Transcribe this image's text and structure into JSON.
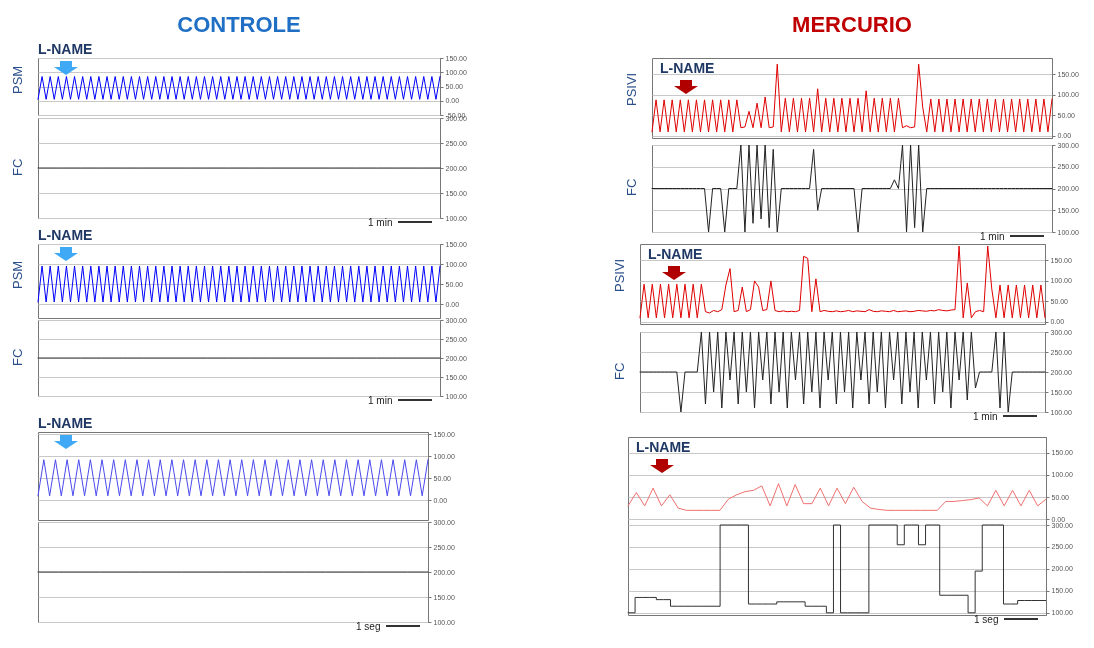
{
  "chart_data": [
    {
      "type": "line",
      "title": "CONTROLE",
      "ylabel": "PSM",
      "annotations": [
        "L-NAME"
      ],
      "categories": [
        null,
        null,
        null,
        null,
        null,
        null,
        null,
        null,
        null,
        null,
        null,
        null,
        null,
        null,
        null,
        null,
        null,
        null,
        null,
        null,
        null,
        null,
        null,
        null,
        null,
        null,
        null,
        null,
        null,
        null,
        null,
        null,
        null,
        null,
        null,
        null,
        null,
        null,
        null,
        null,
        null,
        null,
        null,
        null,
        null,
        null,
        null,
        null,
        null,
        null,
        null,
        null,
        null,
        null,
        null,
        null,
        null,
        null,
        null,
        null,
        null,
        null,
        null,
        null,
        null,
        null,
        null,
        null,
        null,
        null,
        null,
        null,
        null,
        null,
        null,
        null,
        null,
        null,
        null,
        null,
        null,
        null,
        null,
        null,
        null,
        null,
        null,
        null,
        null,
        null,
        null,
        null,
        null,
        null,
        null,
        null,
        null,
        null,
        null,
        null
      ],
      "series": [
        {
          "color": "#0000ff",
          "values": [
            5,
            85,
            5,
            85,
            5,
            85,
            5,
            85,
            5,
            85,
            5,
            85,
            5,
            85,
            5,
            85,
            5,
            85,
            5,
            85,
            5,
            85,
            5,
            85,
            5,
            85,
            5,
            85,
            5,
            85,
            5,
            85,
            5,
            85,
            5,
            85,
            5,
            85,
            5,
            85,
            5,
            85,
            5,
            85,
            5,
            85,
            5,
            85,
            5,
            85,
            5,
            85,
            5,
            85,
            5,
            85,
            5,
            85,
            5,
            85,
            5,
            85,
            5,
            85,
            5,
            85,
            5,
            85,
            5,
            85,
            5,
            85,
            5,
            85,
            5,
            85,
            5,
            85,
            5,
            85,
            5,
            85,
            5,
            85,
            5,
            85,
            5,
            85,
            5,
            85,
            5,
            85,
            5,
            85,
            5,
            85,
            5,
            85,
            5,
            85
          ]
        }
      ],
      "ylim": [
        -50,
        150
      ],
      "yticks": [
        {
          "value": 150,
          "label": "150.00"
        },
        {
          "value": 100,
          "label": "100.00"
        },
        {
          "value": 50,
          "label": "50.00"
        },
        {
          "value": 0,
          "label": "0.00"
        },
        {
          "value": -50,
          "label": "-50.00"
        }
      ],
      "grid": "y",
      "tick_labels": "y"
    },
    {
      "type": "line",
      "ylabel": "FC",
      "categories": [
        null,
        null,
        null,
        null,
        null,
        null,
        null,
        null,
        null,
        null,
        null,
        null,
        null,
        null,
        null,
        null,
        null,
        null,
        null,
        null
      ],
      "series": [
        {
          "color": "#333333",
          "values": [
            200,
            200,
            200,
            200,
            200,
            200,
            200,
            200,
            200,
            200,
            200,
            200,
            200,
            200,
            200,
            200,
            200,
            200,
            200,
            200
          ]
        }
      ],
      "ylim": [
        100,
        300
      ],
      "yticks": [
        {
          "value": 300,
          "label": "300.00"
        },
        {
          "value": 250,
          "label": "250.00"
        },
        {
          "value": 200,
          "label": "200.00"
        },
        {
          "value": 150,
          "label": "150.00"
        },
        {
          "value": 100,
          "label": "100.00"
        }
      ],
      "grid": "y",
      "tick_labels": "y",
      "annotations": [
        "1 min"
      ]
    },
    {
      "type": "line",
      "ylabel": "PSM",
      "annotations": [
        "L-NAME"
      ],
      "categories": [
        null,
        null,
        null,
        null,
        null,
        null,
        null,
        null,
        null,
        null,
        null,
        null,
        null,
        null,
        null,
        null,
        null,
        null,
        null,
        null,
        null,
        null,
        null,
        null,
        null,
        null,
        null,
        null,
        null,
        null,
        null,
        null,
        null,
        null,
        null,
        null,
        null,
        null,
        null,
        null,
        null,
        null,
        null,
        null,
        null,
        null,
        null,
        null,
        null,
        null,
        null,
        null,
        null,
        null,
        null,
        null,
        null,
        null,
        null,
        null,
        null,
        null,
        null,
        null,
        null,
        null,
        null,
        null,
        null,
        null,
        null,
        null,
        null,
        null,
        null,
        null,
        null,
        null,
        null,
        null,
        null,
        null,
        null,
        null,
        null,
        null,
        null,
        null,
        null,
        null,
        null,
        null,
        null,
        null,
        null,
        null,
        null,
        null,
        null,
        null
      ],
      "series": [
        {
          "color": "#0000ff",
          "values": [
            5,
            95,
            5,
            95,
            5,
            95,
            5,
            95,
            5,
            95,
            5,
            95,
            5,
            95,
            5,
            95,
            5,
            95,
            5,
            95,
            5,
            95,
            5,
            95,
            5,
            95,
            5,
            95,
            5,
            95,
            5,
            95,
            5,
            95,
            5,
            95,
            5,
            95,
            5,
            95,
            5,
            95,
            5,
            95,
            5,
            95,
            5,
            95,
            5,
            95,
            5,
            95,
            5,
            95,
            5,
            95,
            5,
            95,
            5,
            95,
            5,
            95,
            5,
            95,
            5,
            95,
            5,
            95,
            5,
            95,
            5,
            95,
            5,
            95,
            5,
            95,
            5,
            95,
            5,
            95,
            5,
            95,
            5,
            95,
            5,
            95,
            5,
            95,
            5,
            95,
            5,
            95,
            5,
            95,
            5,
            95,
            5,
            95,
            5,
            95
          ]
        }
      ],
      "ylim": [
        -35,
        150
      ],
      "yticks": [
        {
          "value": 150,
          "label": "150.00"
        },
        {
          "value": 100,
          "label": "100.00"
        },
        {
          "value": 50,
          "label": "50.00"
        },
        {
          "value": 0,
          "label": "0.00"
        }
      ],
      "grid": "y",
      "tick_labels": "y"
    },
    {
      "type": "line",
      "ylabel": "FC",
      "categories": [
        null,
        null,
        null,
        null,
        null,
        null,
        null,
        null,
        null,
        null,
        null,
        null,
        null,
        null,
        null,
        null,
        null,
        null,
        null,
        null
      ],
      "series": [
        {
          "color": "#333333",
          "values": [
            200,
            200,
            200,
            200,
            200,
            200,
            200,
            200,
            200,
            200,
            200,
            200,
            200,
            200,
            200,
            200,
            200,
            200,
            200,
            200
          ]
        }
      ],
      "ylim": [
        100,
        300
      ],
      "yticks": [
        {
          "value": 300,
          "label": "300.00"
        },
        {
          "value": 250,
          "label": "250.00"
        },
        {
          "value": 200,
          "label": "200.00"
        },
        {
          "value": 150,
          "label": "150.00"
        },
        {
          "value": 100,
          "label": "100.00"
        }
      ],
      "grid": "y",
      "tick_labels": "y",
      "annotations": [
        "1 min"
      ]
    },
    {
      "type": "line",
      "annotations": [
        "L-NAME"
      ],
      "categories": [
        null,
        null,
        null,
        null,
        null,
        null,
        null,
        null,
        null,
        null,
        null,
        null,
        null,
        null,
        null,
        null,
        null,
        null,
        null,
        null,
        null,
        null,
        null,
        null,
        null,
        null,
        null,
        null,
        null,
        null,
        null,
        null,
        null,
        null,
        null,
        null,
        null,
        null,
        null,
        null,
        null,
        null,
        null,
        null,
        null,
        null,
        null,
        null,
        null,
        null,
        null,
        null,
        null,
        null,
        null,
        null,
        null,
        null,
        null,
        null,
        null,
        null,
        null,
        null,
        null,
        null,
        null,
        null
      ],
      "series": [
        {
          "color": "#4a4aee",
          "values": [
            10,
            92,
            10,
            92,
            10,
            92,
            10,
            92,
            10,
            92,
            10,
            92,
            10,
            92,
            10,
            92,
            10,
            92,
            10,
            92,
            10,
            92,
            10,
            92,
            10,
            92,
            10,
            92,
            10,
            92,
            10,
            92,
            10,
            92,
            10,
            92,
            10,
            92,
            10,
            92,
            10,
            92,
            10,
            92,
            10,
            92,
            10,
            92,
            10,
            92,
            10,
            92,
            10,
            92,
            10,
            92,
            10,
            92,
            10,
            92,
            10,
            92,
            10,
            92,
            10,
            92,
            10,
            92
          ]
        }
      ],
      "ylim": [
        -45,
        155
      ],
      "yticks": [
        {
          "value": 150,
          "label": "150.00"
        },
        {
          "value": 100,
          "label": "100.00"
        },
        {
          "value": 50,
          "label": "50.00"
        },
        {
          "value": 0,
          "label": "0.00"
        }
      ],
      "grid": "y",
      "tick_labels": "y"
    },
    {
      "type": "line",
      "categories": [
        null,
        null,
        null,
        null,
        null,
        null,
        null,
        null,
        null,
        null,
        null,
        null,
        null,
        null,
        null,
        null,
        null,
        null,
        null,
        null
      ],
      "series": [
        {
          "color": "#333333",
          "values": [
            200,
            200,
            200,
            200,
            200,
            200,
            200,
            200,
            200,
            200,
            200,
            200,
            200,
            200,
            200,
            200,
            200,
            200,
            200,
            200
          ]
        }
      ],
      "ylim": [
        100,
        300
      ],
      "yticks": [
        {
          "value": 300,
          "label": "300.00"
        },
        {
          "value": 250,
          "label": "250.00"
        },
        {
          "value": 200,
          "label": "200.00"
        },
        {
          "value": 150,
          "label": "150.00"
        },
        {
          "value": 100,
          "label": "100.00"
        }
      ],
      "grid": "y",
      "tick_labels": "y",
      "annotations": [
        "1 seg"
      ]
    },
    {
      "type": "line",
      "title": "MERCURIO",
      "ylabel": "PSIVI",
      "annotations": [
        "L-NAME"
      ],
      "categories": [
        null,
        null,
        null,
        null,
        null,
        null,
        null,
        null,
        null,
        null,
        null,
        null,
        null,
        null,
        null,
        null,
        null,
        null,
        null,
        null,
        null,
        null,
        null,
        null,
        null,
        null,
        null,
        null,
        null,
        null,
        null,
        null,
        null,
        null,
        null,
        null,
        null,
        null,
        null,
        null,
        null,
        null,
        null,
        null,
        null,
        null,
        null,
        null,
        null,
        null,
        null,
        null,
        null,
        null,
        null,
        null,
        null,
        null,
        null,
        null,
        null,
        null,
        null,
        null,
        null,
        null,
        null,
        null,
        null,
        null,
        null,
        null,
        null,
        null,
        null,
        null,
        null,
        null,
        null,
        null,
        null,
        null,
        null,
        null,
        null,
        null,
        null,
        null,
        null,
        null,
        null,
        null,
        null,
        null,
        null,
        null,
        null,
        null,
        null,
        null
      ],
      "series": [
        {
          "color": "#e00000",
          "values": [
            10,
            88,
            10,
            88,
            10,
            88,
            10,
            88,
            10,
            88,
            10,
            88,
            10,
            88,
            10,
            88,
            10,
            88,
            10,
            88,
            10,
            88,
            20,
            22,
            60,
            20,
            80,
            20,
            95,
            20,
            22,
            175,
            10,
            92,
            10,
            92,
            10,
            92,
            10,
            92,
            10,
            115,
            10,
            92,
            10,
            92,
            10,
            92,
            10,
            92,
            10,
            92,
            10,
            110,
            10,
            92,
            10,
            92,
            10,
            92,
            10,
            92,
            20,
            25,
            20,
            22,
            175,
            70,
            10,
            90,
            10,
            90,
            10,
            90,
            10,
            90,
            10,
            90,
            10,
            90,
            10,
            90,
            10,
            90,
            10,
            90,
            10,
            90,
            10,
            90,
            10,
            90,
            10,
            90,
            10,
            90,
            10,
            90,
            10,
            90
          ]
        }
      ],
      "ylim": [
        -5,
        190
      ],
      "yticks": [
        {
          "value": 150,
          "label": "150.00"
        },
        {
          "value": 100,
          "label": "100.00"
        },
        {
          "value": 50,
          "label": "50.00"
        },
        {
          "value": 0,
          "label": "0.00"
        }
      ],
      "grid": "y",
      "tick_labels": "y"
    },
    {
      "type": "line",
      "ylabel": "FC",
      "categories": [
        null,
        null,
        null,
        null,
        null,
        null,
        null,
        null,
        null,
        null,
        null,
        null,
        null,
        null,
        null,
        null,
        null,
        null,
        null,
        null,
        null,
        null,
        null,
        null,
        null,
        null,
        null,
        null,
        null,
        null,
        null,
        null,
        null,
        null,
        null,
        null,
        null,
        null,
        null,
        null,
        null,
        null,
        null,
        null,
        null,
        null,
        null,
        null,
        null,
        null,
        null,
        null,
        null,
        null,
        null,
        null,
        null,
        null,
        null,
        null,
        null,
        null,
        null,
        null,
        null,
        null,
        null,
        null,
        null,
        null,
        null,
        null,
        null,
        null,
        null,
        null,
        null,
        null,
        null,
        null,
        null,
        null,
        null,
        null,
        null,
        null,
        null,
        null,
        null,
        null,
        null,
        null,
        null,
        null,
        null,
        null,
        null,
        null,
        null,
        null
      ],
      "series": [
        {
          "color": "#222222",
          "values": [
            200,
            200,
            200,
            200,
            200,
            200,
            200,
            200,
            200,
            200,
            200,
            200,
            200,
            200,
            100,
            200,
            200,
            200,
            100,
            200,
            200,
            200,
            300,
            100,
            300,
            120,
            300,
            130,
            300,
            110,
            290,
            100,
            200,
            200,
            200,
            200,
            200,
            200,
            200,
            200,
            290,
            150,
            200,
            200,
            200,
            200,
            200,
            200,
            200,
            200,
            200,
            100,
            200,
            200,
            200,
            200,
            200,
            200,
            200,
            200,
            220,
            200,
            300,
            100,
            300,
            110,
            300,
            100,
            200,
            200,
            200,
            200,
            200,
            200,
            200,
            200,
            200,
            200,
            200,
            200,
            200,
            200,
            200,
            200,
            200,
            200,
            200,
            200,
            200,
            200,
            200,
            200,
            200,
            200,
            200,
            200,
            200,
            200,
            200,
            200
          ]
        }
      ],
      "ylim": [
        100,
        300
      ],
      "yticks": [
        {
          "value": 300,
          "label": "300.00"
        },
        {
          "value": 250,
          "label": "250.00"
        },
        {
          "value": 200,
          "label": "200.00"
        },
        {
          "value": 150,
          "label": "150.00"
        },
        {
          "value": 100,
          "label": "100.00"
        }
      ],
      "grid": "y",
      "tick_labels": "y",
      "annotations": [
        "1 min"
      ]
    },
    {
      "type": "line",
      "ylabel": "PSIVI",
      "annotations": [
        "L-NAME"
      ],
      "categories": [
        null,
        null,
        null,
        null,
        null,
        null,
        null,
        null,
        null,
        null,
        null,
        null,
        null,
        null,
        null,
        null,
        null,
        null,
        null,
        null,
        null,
        null,
        null,
        null,
        null,
        null,
        null,
        null,
        null,
        null,
        null,
        null,
        null,
        null,
        null,
        null,
        null,
        null,
        null,
        null,
        null,
        null,
        null,
        null,
        null,
        null,
        null,
        null,
        null,
        null,
        null,
        null,
        null,
        null,
        null,
        null,
        null,
        null,
        null,
        null,
        null,
        null,
        null,
        null,
        null,
        null,
        null,
        null,
        null,
        null,
        null,
        null,
        null,
        null,
        null,
        null,
        null,
        null,
        null,
        null,
        null,
        null,
        null,
        null,
        null,
        null,
        null,
        null,
        null,
        null,
        null,
        null,
        null,
        null,
        null,
        null,
        null,
        null,
        null,
        null
      ],
      "series": [
        {
          "color": "#e00000",
          "values": [
            10,
            92,
            10,
            92,
            10,
            92,
            10,
            92,
            10,
            92,
            10,
            92,
            10,
            92,
            10,
            92,
            25,
            22,
            28,
            25,
            30,
            90,
            130,
            25,
            28,
            85,
            25,
            30,
            100,
            85,
            28,
            30,
            100,
            28,
            25,
            27,
            25,
            26,
            25,
            28,
            160,
            155,
            25,
            105,
            25,
            28,
            26,
            25,
            27,
            25,
            26,
            28,
            25,
            27,
            26,
            25,
            30,
            26,
            25,
            27,
            26,
            25,
            28,
            25,
            26,
            27,
            25,
            26,
            28,
            27,
            26,
            28,
            27,
            30,
            28,
            27,
            29,
            30,
            185,
            10,
            95,
            10,
            25,
            28,
            25,
            185,
            80,
            10,
            90,
            10,
            90,
            10,
            90,
            10,
            90,
            10,
            90,
            10,
            90,
            10
          ]
        }
      ],
      "ylim": [
        -5,
        190
      ],
      "yticks": [
        {
          "value": 150,
          "label": "150.00"
        },
        {
          "value": 100,
          "label": "100.00"
        },
        {
          "value": 50,
          "label": "50.00"
        },
        {
          "value": 0,
          "label": "0.00"
        }
      ],
      "grid": "y",
      "tick_labels": "y"
    },
    {
      "type": "line",
      "ylabel": "FC",
      "categories": [
        null,
        null,
        null,
        null,
        null,
        null,
        null,
        null,
        null,
        null,
        null,
        null,
        null,
        null,
        null,
        null,
        null,
        null,
        null,
        null,
        null,
        null,
        null,
        null,
        null,
        null,
        null,
        null,
        null,
        null,
        null,
        null,
        null,
        null,
        null,
        null,
        null,
        null,
        null,
        null,
        null,
        null,
        null,
        null,
        null,
        null,
        null,
        null,
        null,
        null,
        null,
        null,
        null,
        null,
        null,
        null,
        null,
        null,
        null,
        null,
        null,
        null,
        null,
        null,
        null,
        null,
        null,
        null,
        null,
        null,
        null,
        null,
        null,
        null,
        null,
        null,
        null,
        null,
        null,
        null,
        null,
        null,
        null,
        null,
        null,
        null,
        null,
        null,
        null,
        null,
        null,
        null,
        null,
        null,
        null,
        null,
        null,
        null,
        null,
        null
      ],
      "series": [
        {
          "color": "#222222",
          "values": [
            200,
            200,
            200,
            200,
            200,
            200,
            200,
            200,
            200,
            200,
            100,
            200,
            200,
            200,
            200,
            300,
            120,
            300,
            150,
            300,
            110,
            300,
            180,
            300,
            120,
            300,
            150,
            300,
            110,
            300,
            180,
            300,
            120,
            300,
            150,
            300,
            110,
            300,
            180,
            300,
            120,
            300,
            150,
            300,
            110,
            300,
            180,
            300,
            120,
            300,
            150,
            300,
            110,
            300,
            180,
            300,
            120,
            300,
            150,
            300,
            110,
            300,
            180,
            300,
            120,
            300,
            150,
            300,
            110,
            300,
            180,
            300,
            120,
            300,
            150,
            300,
            110,
            300,
            180,
            300,
            130,
            300,
            160,
            200,
            200,
            200,
            200,
            300,
            110,
            300,
            100,
            200,
            200,
            200,
            200,
            200,
            200,
            200,
            200,
            200
          ]
        }
      ],
      "ylim": [
        100,
        300
      ],
      "yticks": [
        {
          "value": 300,
          "label": "300.00"
        },
        {
          "value": 250,
          "label": "250.00"
        },
        {
          "value": 200,
          "label": "200.00"
        },
        {
          "value": 150,
          "label": "150.00"
        },
        {
          "value": 100,
          "label": "100.00"
        }
      ],
      "grid": "y",
      "tick_labels": "y",
      "annotations": [
        "1 min"
      ]
    },
    {
      "type": "line",
      "annotations": [
        "L-NAME"
      ],
      "categories": [
        null,
        null,
        null,
        null,
        null,
        null,
        null,
        null,
        null,
        null,
        null,
        null,
        null,
        null,
        null,
        null,
        null,
        null,
        null,
        null,
        null,
        null,
        null,
        null,
        null,
        null,
        null,
        null,
        null,
        null,
        null,
        null,
        null,
        null,
        null,
        null,
        null,
        null,
        null,
        null,
        null,
        null,
        null,
        null,
        null,
        null,
        null,
        null,
        null,
        null,
        null
      ],
      "series": [
        {
          "color": "#f07070",
          "values": [
            30,
            60,
            30,
            70,
            30,
            55,
            25,
            20,
            20,
            20,
            20,
            20,
            45,
            55,
            62,
            65,
            75,
            30,
            80,
            30,
            78,
            35,
            35,
            70,
            30,
            70,
            35,
            72,
            40,
            25,
            22,
            20,
            20,
            20,
            20,
            20,
            20,
            20,
            40,
            40,
            42,
            44,
            48,
            30,
            65,
            30,
            65,
            30,
            65,
            30,
            45
          ]
        }
      ],
      "ylim": [
        -13,
        185
      ],
      "yticks": [
        {
          "value": 150,
          "label": "150.00"
        },
        {
          "value": 100,
          "label": "100.00"
        },
        {
          "value": 50,
          "label": "50.00"
        },
        {
          "value": 0,
          "label": "0.00"
        }
      ],
      "grid": "y",
      "tick_labels": "y"
    },
    {
      "type": "step",
      "categories": [
        null,
        null,
        null,
        null,
        null,
        null,
        null,
        null,
        null,
        null,
        null,
        null,
        null,
        null,
        null,
        null,
        null,
        null,
        null,
        null,
        null,
        null,
        null,
        null,
        null,
        null,
        null,
        null,
        null,
        null,
        null,
        null,
        null,
        null,
        null,
        null,
        null,
        null,
        null,
        null,
        null,
        null,
        null,
        null,
        null,
        null,
        null,
        null,
        null,
        null,
        null,
        null,
        null,
        null,
        null,
        null,
        null,
        null,
        null,
        null
      ],
      "series": [
        {
          "color": "#333333",
          "values": [
            100,
            135,
            135,
            135,
            130,
            130,
            115,
            115,
            115,
            115,
            115,
            115,
            115,
            300,
            300,
            300,
            300,
            120,
            120,
            120,
            120,
            125,
            125,
            125,
            125,
            115,
            115,
            115,
            100,
            300,
            100,
            100,
            100,
            100,
            300,
            300,
            300,
            300,
            255,
            300,
            300,
            255,
            300,
            300,
            140,
            140,
            140,
            140,
            100,
            195,
            300,
            300,
            300,
            120,
            120,
            128,
            128,
            128,
            128,
            128
          ]
        }
      ],
      "ylim": [
        95,
        300
      ],
      "yticks": [
        {
          "value": 300,
          "label": "300.00"
        },
        {
          "value": 250,
          "label": "250.00"
        },
        {
          "value": 200,
          "label": "200.00"
        },
        {
          "value": 150,
          "label": "150.00"
        },
        {
          "value": 100,
          "label": "100.00"
        }
      ],
      "grid": "y",
      "tick_labels": "y",
      "annotations": [
        "1 seg"
      ]
    }
  ]
}
